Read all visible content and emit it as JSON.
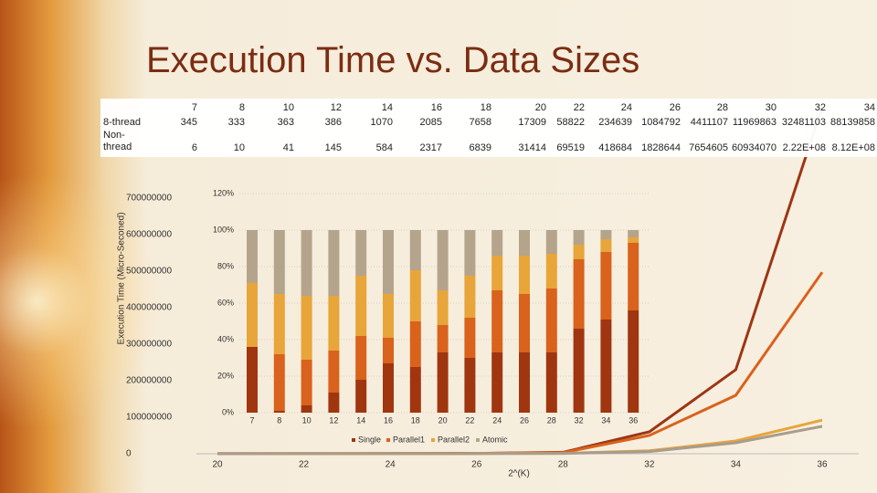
{
  "title": "Execution Time vs. Data Sizes",
  "table": {
    "columns": [
      "7",
      "8",
      "10",
      "12",
      "14",
      "16",
      "18",
      "20",
      "22",
      "24",
      "26",
      "28",
      "30",
      "32",
      "34"
    ],
    "rows": [
      {
        "label": "8-thread",
        "values": [
          345,
          333,
          363,
          386,
          1070,
          2085,
          7658,
          17309,
          58822,
          234639,
          1084792,
          4411107,
          11969863,
          32481103,
          88139858
        ]
      },
      {
        "label": "Non-thread",
        "values": [
          6,
          10,
          41,
          145,
          584,
          2317,
          6839,
          31414,
          69519,
          418684,
          1828644,
          7654605,
          60934070,
          "2.22E+08",
          "8.12E+08"
        ]
      }
    ]
  },
  "chart_data": [
    {
      "type": "line",
      "y_label": "Execution Time (Micro-Seconed)",
      "x_label": "2^(K)",
      "categories": [
        "20",
        "22",
        "24",
        "26",
        "28",
        "32",
        "34",
        "36"
      ],
      "ylim": [
        0,
        800000000
      ],
      "yticks": [
        0,
        100000000,
        200000000,
        300000000,
        400000000,
        500000000,
        600000000,
        700000000
      ],
      "series": [
        {
          "color": "#9c3614",
          "values": [
            200000,
            300000,
            500000,
            1000000,
            4000000,
            60000000,
            230000000,
            950000000
          ]
        },
        {
          "color": "#d9621c",
          "values": [
            200000,
            300000,
            500000,
            1000000,
            3000000,
            50000000,
            160000000,
            497000000
          ]
        },
        {
          "color": "#e7a53a",
          "values": [
            100000,
            200000,
            300000,
            500000,
            1000000,
            8000000,
            35000000,
            92000000
          ]
        },
        {
          "color": "#a89c8c",
          "values": [
            100000,
            200000,
            300000,
            500000,
            1000000,
            6000000,
            30000000,
            75000000
          ]
        }
      ]
    },
    {
      "type": "bar",
      "stacked": true,
      "grid": true,
      "categories": [
        "7",
        "8",
        "10",
        "12",
        "14",
        "16",
        "18",
        "20",
        "22",
        "24",
        "26",
        "28",
        "32",
        "34",
        "36"
      ],
      "ylim": [
        0,
        120
      ],
      "yticks": [
        {
          "value": 0,
          "label": "0%"
        },
        {
          "value": 20,
          "label": "20%"
        },
        {
          "value": 40,
          "label": "40%"
        },
        {
          "value": 60,
          "label": "60%"
        },
        {
          "value": 80,
          "label": "80%"
        },
        {
          "value": 100,
          "label": "100%"
        },
        {
          "value": 120,
          "label": "120%"
        }
      ],
      "series": [
        {
          "name": "Single",
          "color": "#a0360f",
          "values": [
            36,
            1,
            4,
            11,
            18,
            27,
            25,
            33,
            30,
            33,
            33,
            33,
            46,
            51,
            56
          ]
        },
        {
          "name": "Parallel1",
          "color": "#d9621c",
          "values": [
            0,
            31,
            25,
            23,
            24,
            14,
            25,
            15,
            22,
            34,
            32,
            35,
            38,
            37,
            37
          ]
        },
        {
          "name": "Parallel2",
          "color": "#e7a53a",
          "values": [
            35,
            33,
            35,
            30,
            33,
            24,
            28,
            19,
            23,
            19,
            21,
            19,
            8,
            7,
            3
          ]
        },
        {
          "name": "Atomic",
          "color": "#b5a48c",
          "values": [
            29,
            35,
            36,
            36,
            25,
            35,
            22,
            33,
            25,
            14,
            14,
            13,
            8,
            5,
            4
          ]
        }
      ]
    }
  ]
}
